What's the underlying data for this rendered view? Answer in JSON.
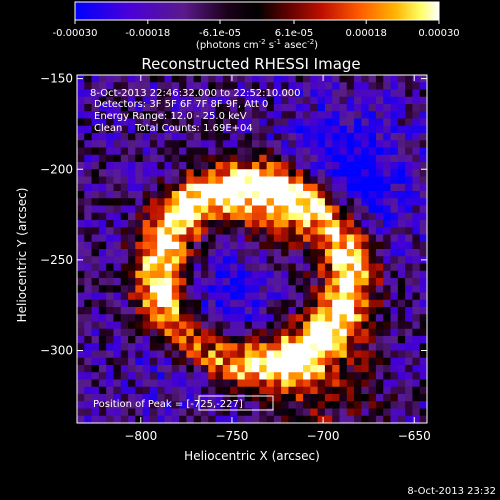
{
  "colorbar": {
    "tick_labels": [
      "-0.00030",
      "-0.00018",
      "-6.1e-05",
      "6.1e-05",
      "0.00018",
      "0.00030"
    ],
    "tick_values": [
      -0.0003,
      -0.00018,
      -6.1e-05,
      6.1e-05,
      0.00018,
      0.0003
    ],
    "range": [
      -0.0003,
      0.0003
    ],
    "units_prefix": "(photons cm",
    "units_exp1": "-2",
    "units_mid": " s",
    "units_exp2": "-1",
    "units_mid2": " asec",
    "units_exp3": "-2",
    "units_suffix": ")",
    "colors": [
      "#0000ff",
      "#5500cc",
      "#33004a",
      "#000000",
      "#5a0000",
      "#c01000",
      "#ff5a00",
      "#ffb400",
      "#ffff66",
      "#ffffff"
    ]
  },
  "chart_data": {
    "type": "heatmap",
    "title": "Reconstructed RHESSI Image",
    "xlabel": "Heliocentric X (arcsec)",
    "ylabel": "Heliocentric Y (arcsec)",
    "xlim": [
      -835,
      -643
    ],
    "ylim": [
      -340,
      -148
    ],
    "x_ticks": [
      -800,
      -750,
      -700,
      -650
    ],
    "x_tick_labels": [
      "−800",
      "−750",
      "−700",
      "−650"
    ],
    "y_ticks": [
      -150,
      -200,
      -250,
      -300
    ],
    "y_tick_labels": [
      "−150",
      "−200",
      "−250",
      "−300"
    ],
    "annotations": [
      "8-Oct-2013 22:46:32.000 to 22:52:10.000",
      "Detectors: 3F 5F 6F 7F 8F 9F, Att 0",
      "Energy Range: 12.0 - 25.0 keV",
      "Clean    Total Counts: 1.69E+04"
    ],
    "peak_label": "Position of Peak = [-725,-227]",
    "peak_position": [
      -725,
      -227
    ],
    "ring_center": [
      -738,
      -258
    ],
    "ring_radius": 52,
    "grid": false
  },
  "footer": {
    "timestamp": "8-Oct-2013 23:32"
  }
}
